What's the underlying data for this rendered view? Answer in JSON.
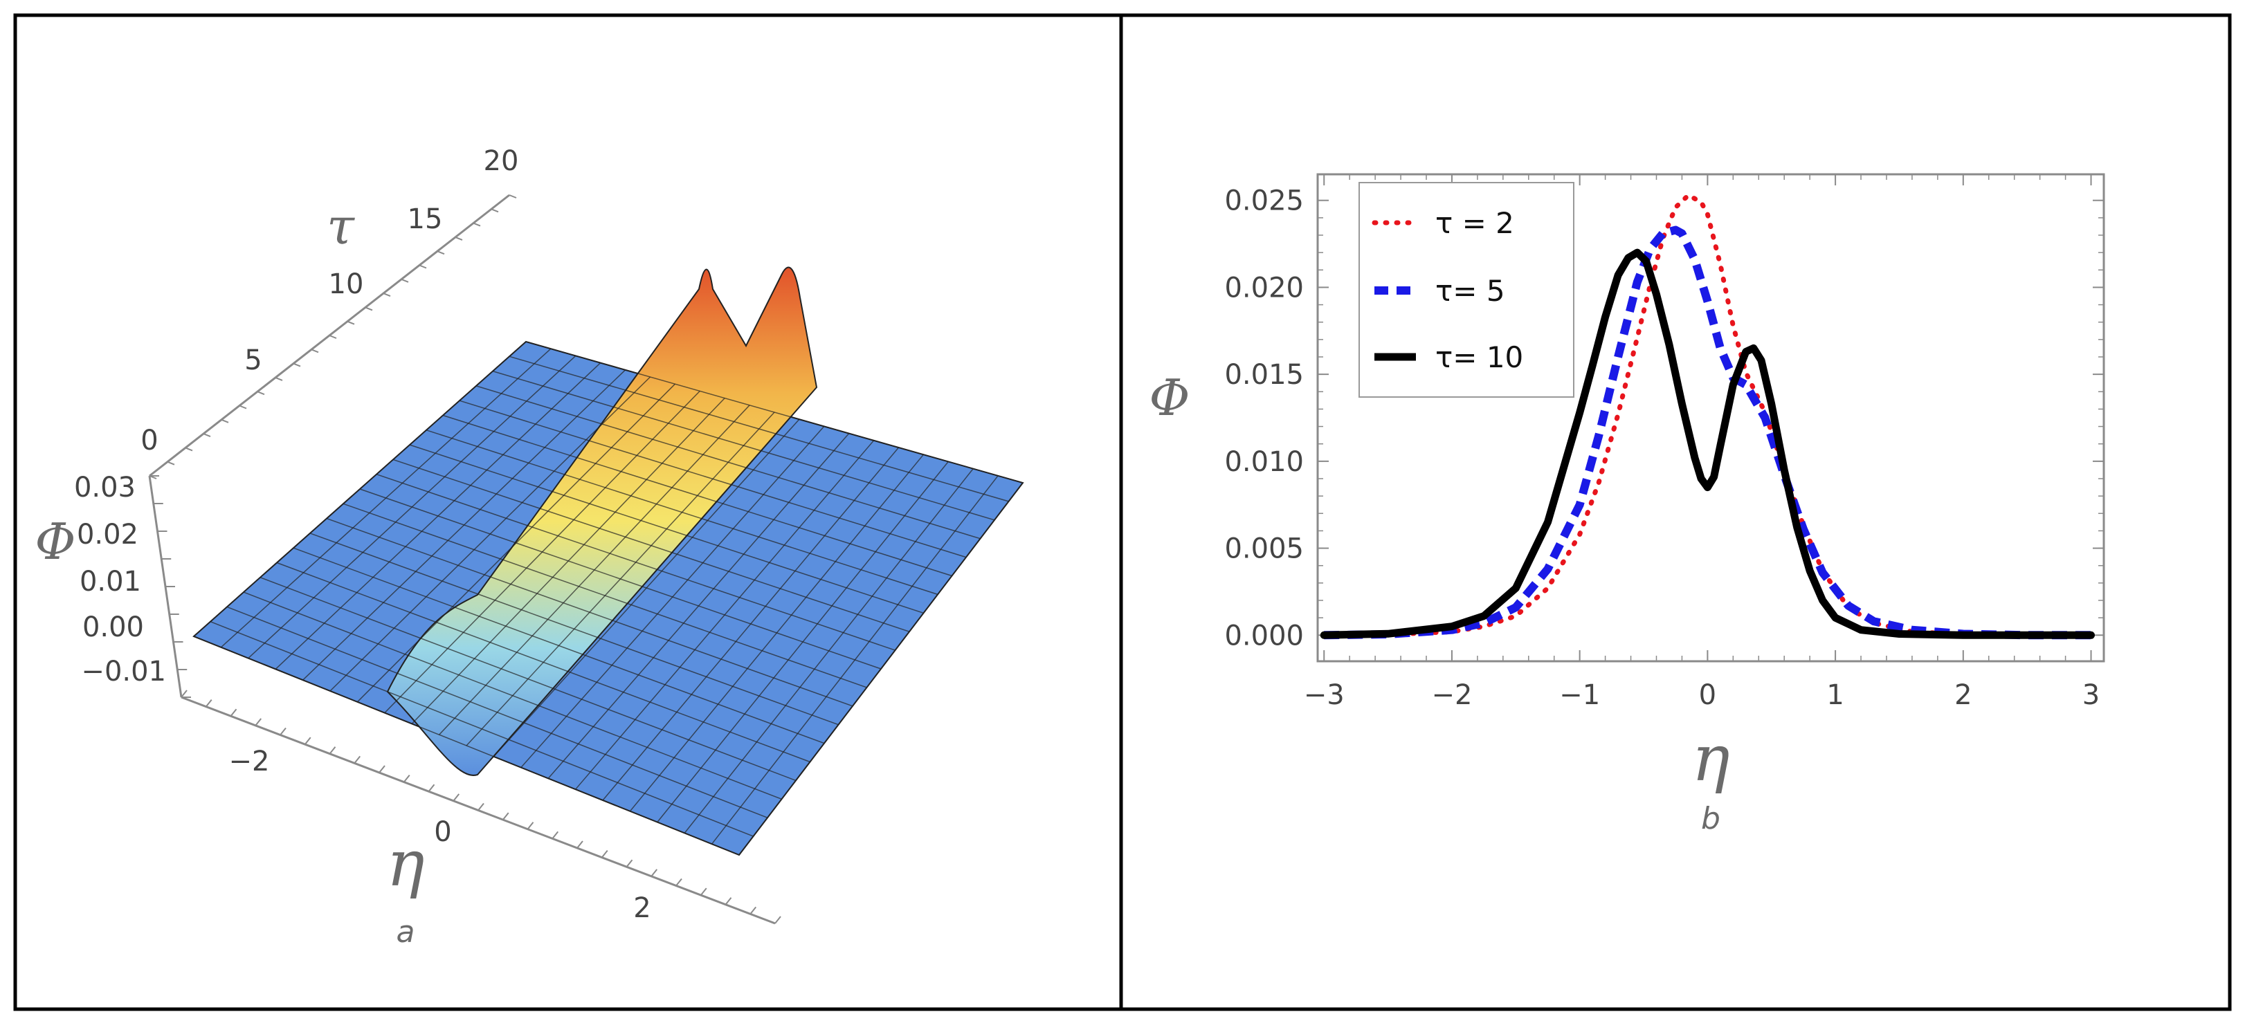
{
  "chart_data": [
    {
      "type": "surface",
      "panel_label": "a",
      "xlabel": "η",
      "ylabel": "τ",
      "zlabel": "Φ",
      "x_ticks": [
        "−2",
        "0",
        "2"
      ],
      "y_ticks": [
        "0",
        "5",
        "10",
        "15",
        "20"
      ],
      "z_ticks": [
        "0.03",
        "0.02",
        "0.01",
        "0.00",
        "−0.01"
      ],
      "xlim": [
        -3,
        3
      ],
      "ylim": [
        0,
        20
      ],
      "zlim": [
        -0.01,
        0.03
      ],
      "mesh_lines": 20,
      "colors": {
        "low": "#5b8fde",
        "mid": "#f5e56b",
        "high": "#e2532b"
      }
    },
    {
      "type": "line",
      "panel_label": "b",
      "xlabel": "η",
      "ylabel": "Φ",
      "xlim": [
        -3.05,
        3.1
      ],
      "ylim": [
        -0.0015,
        0.0265
      ],
      "x_ticks": [
        -3,
        -2,
        -1,
        0,
        1,
        2,
        3
      ],
      "x_tick_labels": [
        "−3",
        "−2",
        "−1",
        "0",
        "1",
        "2",
        "3"
      ],
      "y_ticks": [
        0.0,
        0.005,
        0.01,
        0.015,
        0.02,
        0.025
      ],
      "y_tick_labels": [
        "0.000",
        "0.005",
        "0.010",
        "0.015",
        "0.020",
        "0.025"
      ],
      "legend_position": "top-left",
      "series": [
        {
          "name": "τ = 2",
          "style": "dotted",
          "color": "#e8141c",
          "x": [
            -3.0,
            -2.5,
            -2.0,
            -1.75,
            -1.5,
            -1.25,
            -1.0,
            -0.85,
            -0.7,
            -0.55,
            -0.45,
            -0.35,
            -0.25,
            -0.15,
            -0.05,
            0.0,
            0.1,
            0.2,
            0.3,
            0.45,
            0.6,
            0.75,
            0.9,
            1.1,
            1.3,
            1.6,
            2.0,
            2.5,
            3.0
          ],
          "y": [
            0.0,
            3e-05,
            0.0002,
            0.0005,
            0.0011,
            0.0027,
            0.0058,
            0.0088,
            0.0127,
            0.0171,
            0.0201,
            0.0228,
            0.0246,
            0.0253,
            0.0249,
            0.0242,
            0.0213,
            0.0178,
            0.0151,
            0.0128,
            0.0095,
            0.0063,
            0.0037,
            0.0016,
            0.0007,
            0.0002,
            5e-05,
            0.0,
            0.0
          ]
        },
        {
          "name": "τ= 5",
          "style": "dashed",
          "color": "#1a1ae6",
          "x": [
            -3.0,
            -2.5,
            -2.0,
            -1.75,
            -1.5,
            -1.25,
            -1.0,
            -0.85,
            -0.7,
            -0.55,
            -0.45,
            -0.35,
            -0.25,
            -0.2,
            -0.1,
            0.0,
            0.1,
            0.2,
            0.3,
            0.45,
            0.6,
            0.75,
            0.9,
            1.1,
            1.3,
            1.6,
            2.0,
            2.5,
            3.0
          ],
          "y": [
            0.0,
            5e-05,
            0.0003,
            0.0007,
            0.0016,
            0.0038,
            0.0075,
            0.0115,
            0.016,
            0.0203,
            0.0222,
            0.0231,
            0.0233,
            0.0231,
            0.0216,
            0.0192,
            0.0165,
            0.0148,
            0.0144,
            0.0125,
            0.0092,
            0.0061,
            0.0036,
            0.0017,
            0.0008,
            0.0003,
            7e-05,
            0.0,
            0.0
          ]
        },
        {
          "name": "τ= 10",
          "style": "solid",
          "color": "#000000",
          "x": [
            -3.0,
            -2.5,
            -2.0,
            -1.75,
            -1.5,
            -1.25,
            -1.0,
            -0.9,
            -0.8,
            -0.7,
            -0.62,
            -0.55,
            -0.48,
            -0.4,
            -0.3,
            -0.2,
            -0.1,
            -0.05,
            0.0,
            0.05,
            0.1,
            0.2,
            0.3,
            0.36,
            0.42,
            0.5,
            0.6,
            0.7,
            0.8,
            0.9,
            1.0,
            1.2,
            1.5,
            2.0,
            2.5,
            3.0
          ],
          "y": [
            0.0,
            8e-05,
            0.0005,
            0.0011,
            0.0027,
            0.0065,
            0.0128,
            0.0155,
            0.0183,
            0.0207,
            0.0217,
            0.022,
            0.0215,
            0.0196,
            0.0167,
            0.0133,
            0.0102,
            0.009,
            0.0085,
            0.0091,
            0.0109,
            0.0144,
            0.0163,
            0.0165,
            0.0158,
            0.0133,
            0.0095,
            0.0062,
            0.0037,
            0.002,
            0.001,
            0.0003,
            7e-05,
            0.0,
            0.0,
            0.0
          ]
        }
      ]
    }
  ]
}
